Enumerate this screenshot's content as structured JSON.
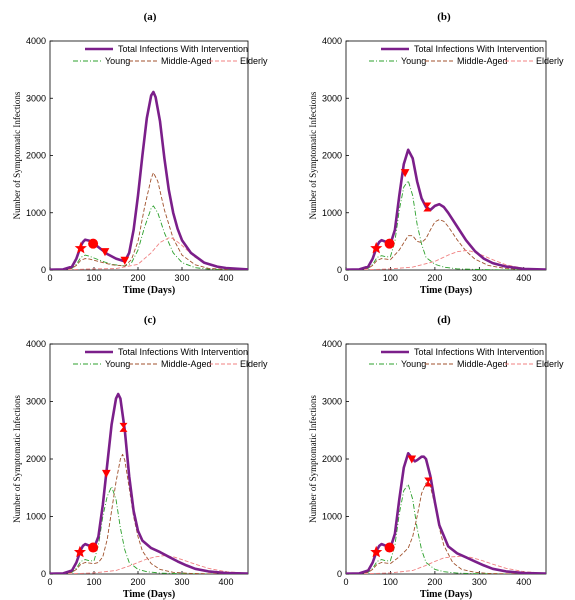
{
  "chart_data": [
    {
      "type": "line",
      "title": "(a)",
      "xlabel": "Time (Days)",
      "ylabel": "Number of Symptomatic Infections",
      "xlim": [
        0,
        450
      ],
      "ylim": [
        0,
        4000
      ],
      "xticks": [
        0,
        100,
        200,
        300,
        400
      ],
      "yticks": [
        0,
        1000,
        2000,
        3000,
        4000
      ],
      "grid": false,
      "legend_placement": "top-center",
      "series": [
        {
          "name": "Total Infections With Intervention",
          "color": "#7b1f8a",
          "style": "solid",
          "x": [
            0,
            30,
            50,
            60,
            70,
            75,
            80,
            90,
            100,
            110,
            120,
            130,
            150,
            170,
            180,
            190,
            200,
            210,
            220,
            230,
            235,
            240,
            250,
            260,
            270,
            280,
            290,
            300,
            320,
            350,
            380,
            400,
            450
          ],
          "y": [
            5,
            10,
            60,
            200,
            420,
            490,
            530,
            510,
            460,
            400,
            340,
            280,
            200,
            150,
            300,
            700,
            1300,
            2000,
            2650,
            3050,
            3110,
            3020,
            2600,
            1950,
            1400,
            1000,
            720,
            520,
            300,
            130,
            60,
            35,
            10
          ]
        },
        {
          "name": "Young",
          "color": "#2ca02c",
          "style": "dashdot",
          "x": [
            0,
            30,
            50,
            60,
            70,
            80,
            90,
            100,
            120,
            140,
            170,
            185,
            200,
            215,
            230,
            235,
            245,
            260,
            280,
            300,
            330,
            360,
            400,
            450
          ],
          "y": [
            2,
            5,
            30,
            100,
            220,
            260,
            240,
            210,
            150,
            100,
            70,
            120,
            350,
            750,
            1080,
            1120,
            1000,
            650,
            300,
            130,
            40,
            15,
            5,
            2
          ]
        },
        {
          "name": "Middle-Aged",
          "color": "#a0522d",
          "style": "dashed",
          "x": [
            0,
            30,
            50,
            60,
            70,
            80,
            90,
            100,
            120,
            140,
            170,
            185,
            200,
            215,
            230,
            235,
            245,
            260,
            280,
            300,
            330,
            360,
            400,
            450
          ],
          "y": [
            2,
            5,
            30,
            80,
            170,
            200,
            190,
            170,
            130,
            90,
            70,
            180,
            500,
            1100,
            1600,
            1700,
            1550,
            1050,
            550,
            260,
            90,
            30,
            10,
            3
          ]
        },
        {
          "name": "Elderly",
          "color": "#f08080",
          "style": "dashed",
          "x": [
            0,
            50,
            80,
            100,
            150,
            200,
            230,
            250,
            270,
            280,
            300,
            330,
            360,
            400,
            450
          ],
          "y": [
            0,
            5,
            15,
            20,
            25,
            100,
            300,
            480,
            560,
            550,
            430,
            220,
            100,
            30,
            10
          ]
        }
      ],
      "markers": [
        {
          "shape": "star",
          "x": 70,
          "y": 380
        },
        {
          "shape": "circle",
          "x": 98,
          "y": 460
        },
        {
          "shape": "triangle-down",
          "x": 125,
          "y": 320
        },
        {
          "shape": "triangle-down",
          "x": 170,
          "y": 170
        }
      ]
    },
    {
      "type": "line",
      "title": "(b)",
      "xlabel": "Time (Days)",
      "ylabel": "Number of Symptomatic Infections",
      "xlim": [
        0,
        450
      ],
      "ylim": [
        0,
        4000
      ],
      "xticks": [
        0,
        100,
        200,
        300,
        400
      ],
      "yticks": [
        0,
        1000,
        2000,
        3000,
        4000
      ],
      "grid": false,
      "legend_placement": "top-center",
      "series": [
        {
          "name": "Total Infections With Intervention",
          "color": "#7b1f8a",
          "style": "solid",
          "x": [
            0,
            30,
            50,
            60,
            70,
            75,
            80,
            90,
            100,
            110,
            120,
            130,
            140,
            150,
            160,
            170,
            180,
            190,
            200,
            210,
            220,
            230,
            250,
            270,
            290,
            310,
            330,
            360,
            400,
            450
          ],
          "y": [
            5,
            10,
            60,
            200,
            420,
            490,
            520,
            490,
            450,
            700,
            1300,
            1850,
            2100,
            1950,
            1550,
            1250,
            1100,
            1050,
            1120,
            1150,
            1100,
            1000,
            760,
            520,
            330,
            200,
            120,
            60,
            20,
            8
          ]
        },
        {
          "name": "Young",
          "color": "#2ca02c",
          "style": "dashdot",
          "x": [
            0,
            30,
            50,
            60,
            70,
            80,
            90,
            100,
            110,
            120,
            130,
            140,
            150,
            160,
            170,
            180,
            200,
            220,
            250,
            300,
            350,
            450
          ],
          "y": [
            2,
            5,
            30,
            100,
            220,
            250,
            230,
            230,
            500,
            1050,
            1450,
            1560,
            1300,
            800,
            450,
            220,
            100,
            50,
            20,
            8,
            3,
            1
          ]
        },
        {
          "name": "Middle-Aged",
          "color": "#a0522d",
          "style": "dashed",
          "x": [
            0,
            30,
            50,
            60,
            70,
            80,
            90,
            100,
            120,
            140,
            150,
            160,
            170,
            180,
            190,
            200,
            210,
            220,
            230,
            250,
            270,
            290,
            320,
            360,
            400,
            450
          ],
          "y": [
            2,
            5,
            30,
            80,
            170,
            200,
            190,
            180,
            350,
            600,
            600,
            500,
            480,
            550,
            700,
            840,
            880,
            850,
            760,
            530,
            330,
            190,
            80,
            25,
            8,
            2
          ]
        },
        {
          "name": "Elderly",
          "color": "#f08080",
          "style": "dashed",
          "x": [
            0,
            50,
            100,
            150,
            200,
            230,
            250,
            270,
            280,
            300,
            330,
            360,
            400,
            450
          ],
          "y": [
            0,
            5,
            20,
            50,
            150,
            260,
            320,
            340,
            330,
            280,
            180,
            90,
            30,
            10
          ]
        }
      ],
      "markers": [
        {
          "shape": "star",
          "x": 68,
          "y": 380
        },
        {
          "shape": "circle",
          "x": 98,
          "y": 460
        },
        {
          "shape": "triangle-down",
          "x": 133,
          "y": 1700
        },
        {
          "shape": "hourglass",
          "x": 183,
          "y": 1100
        }
      ]
    },
    {
      "type": "line",
      "title": "(c)",
      "xlabel": "Time (Days)",
      "ylabel": "Number of Symptomatic Infections",
      "xlim": [
        0,
        450
      ],
      "ylim": [
        0,
        4000
      ],
      "xticks": [
        0,
        100,
        200,
        300,
        400
      ],
      "yticks": [
        0,
        1000,
        2000,
        3000,
        4000
      ],
      "grid": false,
      "legend_placement": "top-center",
      "series": [
        {
          "name": "Total Infections With Intervention",
          "color": "#7b1f8a",
          "style": "solid",
          "x": [
            0,
            30,
            50,
            60,
            70,
            75,
            80,
            90,
            100,
            110,
            120,
            130,
            140,
            150,
            155,
            160,
            170,
            180,
            190,
            200,
            210,
            230,
            250,
            270,
            290,
            310,
            330,
            360,
            400,
            450
          ],
          "y": [
            5,
            10,
            60,
            200,
            420,
            490,
            520,
            490,
            450,
            650,
            1200,
            1900,
            2600,
            3050,
            3130,
            3050,
            2500,
            1700,
            1100,
            750,
            580,
            450,
            380,
            300,
            220,
            150,
            90,
            45,
            18,
            8
          ]
        },
        {
          "name": "Young",
          "color": "#2ca02c",
          "style": "dashdot",
          "x": [
            0,
            30,
            50,
            60,
            70,
            80,
            90,
            100,
            110,
            120,
            130,
            140,
            150,
            160,
            170,
            180,
            200,
            220,
            250,
            300,
            350,
            450
          ],
          "y": [
            2,
            5,
            30,
            100,
            220,
            250,
            230,
            230,
            500,
            1000,
            1350,
            1520,
            1300,
            800,
            420,
            200,
            80,
            40,
            15,
            5,
            2,
            1
          ]
        },
        {
          "name": "Middle-Aged",
          "color": "#a0522d",
          "style": "dashed",
          "x": [
            0,
            30,
            50,
            60,
            70,
            80,
            90,
            100,
            110,
            120,
            130,
            140,
            150,
            160,
            165,
            170,
            180,
            190,
            200,
            210,
            230,
            250,
            280,
            320,
            360,
            450
          ],
          "y": [
            2,
            5,
            30,
            80,
            170,
            200,
            190,
            180,
            200,
            300,
            600,
            1100,
            1600,
            2000,
            2080,
            1980,
            1500,
            1000,
            650,
            400,
            180,
            80,
            30,
            10,
            4,
            1
          ]
        },
        {
          "name": "Elderly",
          "color": "#f08080",
          "style": "dashed",
          "x": [
            0,
            50,
            100,
            150,
            180,
            200,
            220,
            240,
            260,
            280,
            300,
            330,
            360,
            400,
            450
          ],
          "y": [
            0,
            5,
            20,
            60,
            140,
            200,
            260,
            300,
            320,
            300,
            250,
            170,
            100,
            40,
            12
          ]
        }
      ],
      "markers": [
        {
          "shape": "star",
          "x": 68,
          "y": 380
        },
        {
          "shape": "circle",
          "x": 98,
          "y": 460
        },
        {
          "shape": "triangle-down",
          "x": 128,
          "y": 1750
        },
        {
          "shape": "hourglass",
          "x": 167,
          "y": 2550
        }
      ]
    },
    {
      "type": "line",
      "title": "(d)",
      "xlabel": "Time (Days)",
      "ylabel": "Number of Symptomatic Infections",
      "xlim": [
        0,
        450
      ],
      "ylim": [
        0,
        4000
      ],
      "xticks": [
        0,
        100,
        200,
        300,
        400
      ],
      "yticks": [
        0,
        1000,
        2000,
        3000,
        4000
      ],
      "grid": false,
      "legend_placement": "top-center",
      "series": [
        {
          "name": "Total Infections With Intervention",
          "color": "#7b1f8a",
          "style": "solid",
          "x": [
            0,
            30,
            50,
            60,
            70,
            75,
            80,
            90,
            100,
            110,
            120,
            130,
            140,
            150,
            155,
            160,
            170,
            175,
            180,
            190,
            200,
            210,
            230,
            250,
            270,
            290,
            310,
            330,
            360,
            400,
            450
          ],
          "y": [
            5,
            10,
            60,
            200,
            420,
            490,
            520,
            490,
            450,
            700,
            1300,
            1850,
            2100,
            2000,
            1960,
            1980,
            2040,
            2040,
            2000,
            1700,
            1250,
            850,
            480,
            360,
            290,
            220,
            150,
            90,
            45,
            18,
            8
          ]
        },
        {
          "name": "Young",
          "color": "#2ca02c",
          "style": "dashdot",
          "x": [
            0,
            30,
            50,
            60,
            70,
            80,
            90,
            100,
            110,
            120,
            130,
            140,
            150,
            160,
            170,
            180,
            200,
            220,
            250,
            300,
            350,
            450
          ],
          "y": [
            2,
            5,
            30,
            100,
            220,
            250,
            230,
            230,
            500,
            1050,
            1450,
            1560,
            1300,
            800,
            420,
            200,
            80,
            40,
            15,
            5,
            2,
            1
          ]
        },
        {
          "name": "Middle-Aged",
          "color": "#a0522d",
          "style": "dashed",
          "x": [
            0,
            30,
            50,
            60,
            70,
            80,
            90,
            100,
            120,
            140,
            150,
            160,
            170,
            180,
            185,
            190,
            200,
            210,
            220,
            240,
            260,
            290,
            320,
            360,
            400,
            450
          ],
          "y": [
            2,
            5,
            30,
            80,
            170,
            200,
            190,
            180,
            300,
            450,
            650,
            1000,
            1400,
            1580,
            1600,
            1520,
            1200,
            800,
            500,
            200,
            80,
            30,
            10,
            4,
            2,
            1
          ]
        },
        {
          "name": "Elderly",
          "color": "#f08080",
          "style": "dashed",
          "x": [
            0,
            50,
            100,
            150,
            180,
            200,
            220,
            240,
            260,
            280,
            300,
            330,
            360,
            400,
            450
          ],
          "y": [
            0,
            5,
            20,
            60,
            150,
            220,
            280,
            300,
            310,
            290,
            250,
            170,
            100,
            40,
            12
          ]
        }
      ],
      "markers": [
        {
          "shape": "star",
          "x": 68,
          "y": 380
        },
        {
          "shape": "circle",
          "x": 98,
          "y": 460
        },
        {
          "shape": "triangle-down",
          "x": 148,
          "y": 2000
        },
        {
          "shape": "hourglass",
          "x": 185,
          "y": 1600
        }
      ]
    }
  ]
}
